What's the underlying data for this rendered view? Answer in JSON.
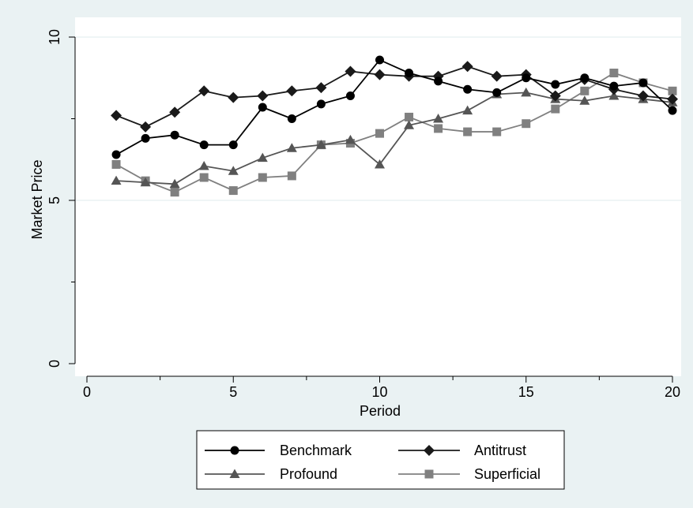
{
  "chart_data": {
    "type": "line",
    "xlabel": "Period",
    "ylabel": "Market Price",
    "xlim": [
      0,
      20
    ],
    "ylim": [
      0,
      10
    ],
    "xticks": [
      0,
      5,
      10,
      15,
      20
    ],
    "yticks": [
      0,
      5,
      10
    ],
    "xtick_labels": [
      "0",
      "5",
      "10",
      "15",
      "20"
    ],
    "ytick_labels": [
      "0",
      "5",
      "10"
    ],
    "grid": "horizontal at major y ticks",
    "legend_position": "bottom",
    "x": [
      1,
      2,
      3,
      4,
      5,
      6,
      7,
      8,
      9,
      10,
      11,
      12,
      13,
      14,
      15,
      16,
      17,
      18,
      19,
      20
    ],
    "series": [
      {
        "name": "Benchmark",
        "marker": "circle",
        "color": "#000000",
        "values": [
          6.4,
          6.9,
          7.0,
          6.7,
          6.7,
          7.85,
          7.5,
          7.95,
          8.2,
          9.3,
          8.9,
          8.65,
          8.4,
          8.3,
          8.75,
          8.55,
          8.75,
          8.5,
          8.6,
          7.75
        ]
      },
      {
        "name": "Antitrust",
        "marker": "diamond",
        "color": "#1a1a1a",
        "values": [
          7.6,
          7.25,
          7.7,
          8.35,
          8.15,
          8.2,
          8.35,
          8.45,
          8.95,
          8.85,
          8.8,
          8.8,
          9.1,
          8.8,
          8.85,
          8.2,
          8.7,
          8.4,
          8.2,
          8.1
        ]
      },
      {
        "name": "Profound",
        "marker": "triangle",
        "color": "#555555",
        "values": [
          5.6,
          5.55,
          5.5,
          6.05,
          5.9,
          6.3,
          6.6,
          6.7,
          6.85,
          6.1,
          7.3,
          7.5,
          7.75,
          8.25,
          8.3,
          8.1,
          8.05,
          8.2,
          8.1,
          8.0
        ]
      },
      {
        "name": "Superficial",
        "marker": "square",
        "color": "#808080",
        "values": [
          6.1,
          5.6,
          5.25,
          5.7,
          5.3,
          5.7,
          5.75,
          6.7,
          6.75,
          7.05,
          7.55,
          7.2,
          7.1,
          7.1,
          7.35,
          7.8,
          8.35,
          8.9,
          8.6,
          8.35
        ]
      }
    ]
  }
}
